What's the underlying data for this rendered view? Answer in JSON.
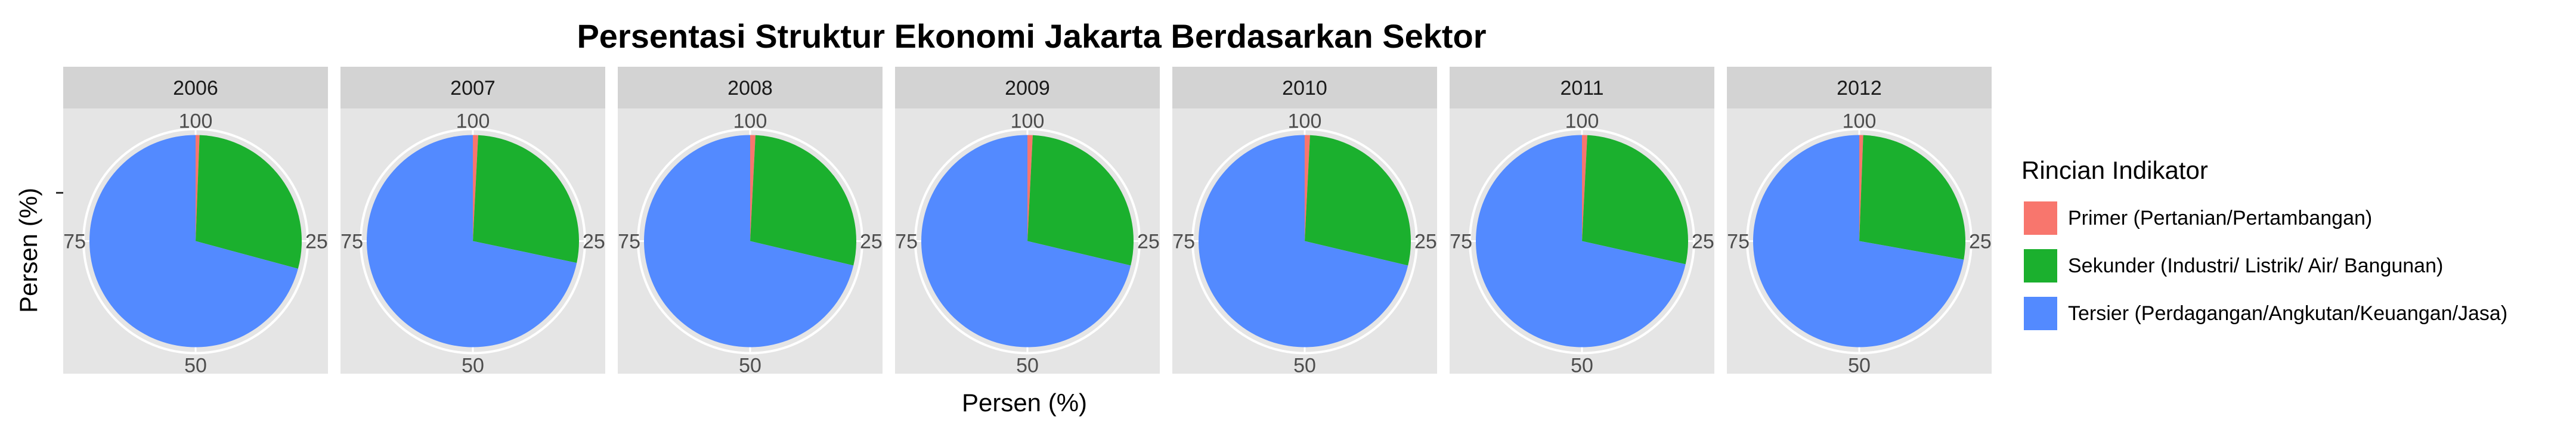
{
  "chart_data": {
    "type": "pie",
    "title": "Persentasi Struktur Ekonomi Jakarta Berdasarkan Sektor",
    "xlabel": "Persen (%)",
    "ylabel": "Persen (%)",
    "axis_ticks": [
      "100",
      "25",
      "50",
      "75"
    ],
    "facets": [
      "2006",
      "2007",
      "2008",
      "2009",
      "2010",
      "2011",
      "2012"
    ],
    "legend": {
      "title": "Rincian Indikator",
      "placement": "right"
    },
    "series": [
      {
        "name": "Primer (Pertanian/Pertambangan)",
        "color": "#F8766D",
        "values": [
          0.6,
          0.8,
          0.8,
          0.8,
          0.8,
          0.8,
          0.6
        ]
      },
      {
        "name": "Sekunder (Industri/ Listrik/ Air/ Bangunan)",
        "color": "#1BB02E",
        "values": [
          28.6,
          27.5,
          27.9,
          27.9,
          27.9,
          27.7,
          27.2
        ]
      },
      {
        "name": "Tersier (Perdagangan/Angkutan/Keuangan/Jasa)",
        "color": "#538AFF",
        "values": [
          70.8,
          71.7,
          71.3,
          71.3,
          71.3,
          71.5,
          72.2
        ]
      }
    ],
    "panel_background": "#E5E5E5",
    "strip_background": "#D3D3D3",
    "grid": true
  }
}
